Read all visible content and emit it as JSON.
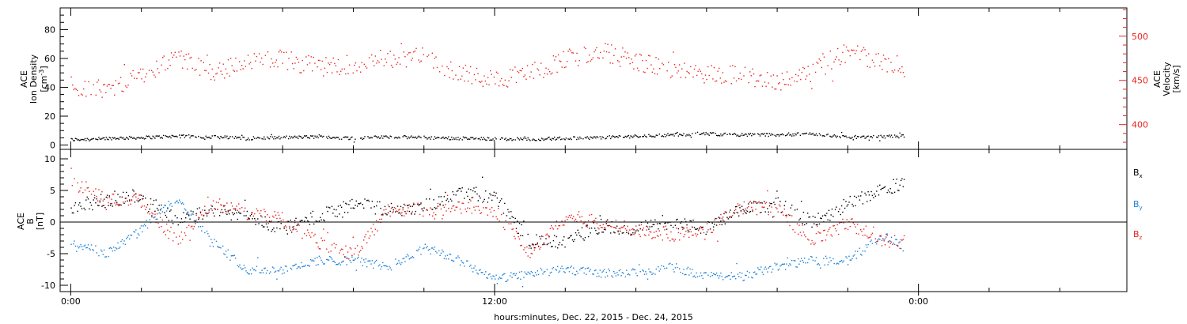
{
  "colors": {
    "black": "#000000",
    "red": "#e8231f",
    "blue": "#1b7fd6",
    "frame": "#000000"
  },
  "chart_data": [
    {
      "type": "scatter",
      "title": "",
      "xlabel": "hours:minutes, Dec. 22, 2015 - Dec. 24, 2015",
      "x_tick_labels": [
        "0:00",
        "12:00",
        "0:00"
      ],
      "x_major_ticks_hours": [
        0,
        12,
        24
      ],
      "x_minor_ticks_every_hours": 2,
      "xlim_hours": [
        -0.3,
        29.9
      ],
      "data_end_hour": 23.6,
      "left_axis": {
        "label_lines": [
          "ACE",
          "Ion Density",
          "[cm^-3]"
        ],
        "label_display": [
          "ACE",
          "Ion Density",
          "[cm",
          "-3",
          "]"
        ],
        "ylim": [
          -3,
          95
        ],
        "ticks": [
          0,
          20,
          40,
          60,
          80
        ],
        "tick_labels": [
          "0",
          "20",
          "40",
          "60",
          "80"
        ]
      },
      "right_axis": {
        "label_lines": [
          "ACE",
          "Velocity",
          "[km/s]"
        ],
        "ylim": [
          372,
          532
        ],
        "ticks": [
          400,
          450,
          500
        ],
        "tick_labels": [
          "400",
          "450",
          "500"
        ],
        "color": "#e8231f"
      },
      "grid": false,
      "series": [
        {
          "name": "",
          "axis": "left",
          "color": "#000000",
          "x_hours": [
            0,
            1,
            2,
            3,
            4,
            5,
            6,
            7,
            8,
            9,
            10,
            11,
            12,
            13,
            14,
            15,
            16,
            17,
            18,
            19,
            20,
            21,
            22,
            23,
            23.6
          ],
          "values": [
            4,
            5,
            5.5,
            6.5,
            6,
            5,
            5.5,
            6,
            5,
            6,
            5.5,
            5,
            4.5,
            4.5,
            5,
            5.5,
            6.5,
            7.5,
            8,
            7.5,
            7.5,
            8,
            6,
            6,
            6.5
          ],
          "jitter": 1.1
        },
        {
          "name": "",
          "axis": "right",
          "color": "#e8231f",
          "x_hours": [
            0,
            1,
            2,
            3,
            4,
            5,
            6,
            7,
            8,
            9,
            10,
            11,
            12,
            13,
            14,
            15,
            16,
            17,
            18,
            19,
            20,
            21,
            22,
            23,
            23.6
          ],
          "values": [
            445,
            440,
            455,
            475,
            460,
            470,
            475,
            465,
            470,
            475,
            478,
            458,
            452,
            458,
            475,
            483,
            472,
            462,
            458,
            456,
            449,
            465,
            483,
            472,
            465
          ],
          "jitter": 11
        }
      ]
    },
    {
      "type": "scatter",
      "title": "",
      "xlabel": "",
      "left_axis": {
        "label_lines": [
          "ACE",
          "B",
          "[nT]"
        ],
        "ylim": [
          -11,
          11.5
        ],
        "ticks": [
          -10,
          -5,
          0,
          5,
          10
        ],
        "tick_labels": [
          "-10",
          "-5",
          "0",
          "5",
          "10"
        ]
      },
      "zero_line": true,
      "grid": false,
      "legend_position": "right",
      "series": [
        {
          "name": "Bx",
          "color": "#000000",
          "x_hours": [
            0,
            1,
            2,
            3,
            4,
            5,
            6,
            7,
            8,
            9,
            10,
            11,
            12,
            13,
            14,
            15,
            16,
            17,
            18,
            19,
            20,
            21,
            22,
            23,
            23.6
          ],
          "values": [
            2.5,
            3.5,
            4,
            0.5,
            2,
            1,
            -1,
            1,
            3,
            2,
            2.5,
            5,
            4,
            -3,
            -3,
            -0.5,
            -1,
            0,
            -1,
            2,
            3,
            0,
            3,
            5.5,
            6
          ],
          "jitter": 1.1
        },
        {
          "name": "By",
          "color": "#1b7fd6",
          "x_hours": [
            0,
            1,
            2,
            3,
            4,
            5,
            6,
            7,
            8,
            9,
            10,
            11,
            12,
            13,
            14,
            15,
            16,
            17,
            18,
            19,
            20,
            21,
            22,
            23,
            23.6
          ],
          "values": [
            -3,
            -5,
            -1,
            4,
            -3,
            -7.5,
            -7.5,
            -6,
            -6,
            -7,
            -4,
            -6,
            -9,
            -8,
            -7.5,
            -8,
            -8,
            -7,
            -8.5,
            -8.5,
            -7,
            -6,
            -6,
            -2,
            -4
          ],
          "jitter": 0.7
        },
        {
          "name": "Bz",
          "color": "#e8231f",
          "x_hours": [
            0,
            1,
            2,
            3,
            4,
            5,
            6,
            7,
            8,
            9,
            10,
            11,
            12,
            13,
            14,
            15,
            16,
            17,
            18,
            19,
            20,
            21,
            22,
            23,
            23.6
          ],
          "values": [
            6.5,
            3.5,
            3.5,
            -3,
            3,
            1.5,
            0.5,
            -3,
            -5,
            2,
            2,
            2.5,
            2,
            -5,
            1,
            0,
            -1,
            -2,
            -1,
            2.5,
            2,
            -3,
            0,
            -3,
            -3
          ],
          "jitter": 1.1
        }
      ],
      "legend_labels": [
        "B",
        "x",
        "B",
        "y",
        "B",
        "z"
      ]
    }
  ]
}
